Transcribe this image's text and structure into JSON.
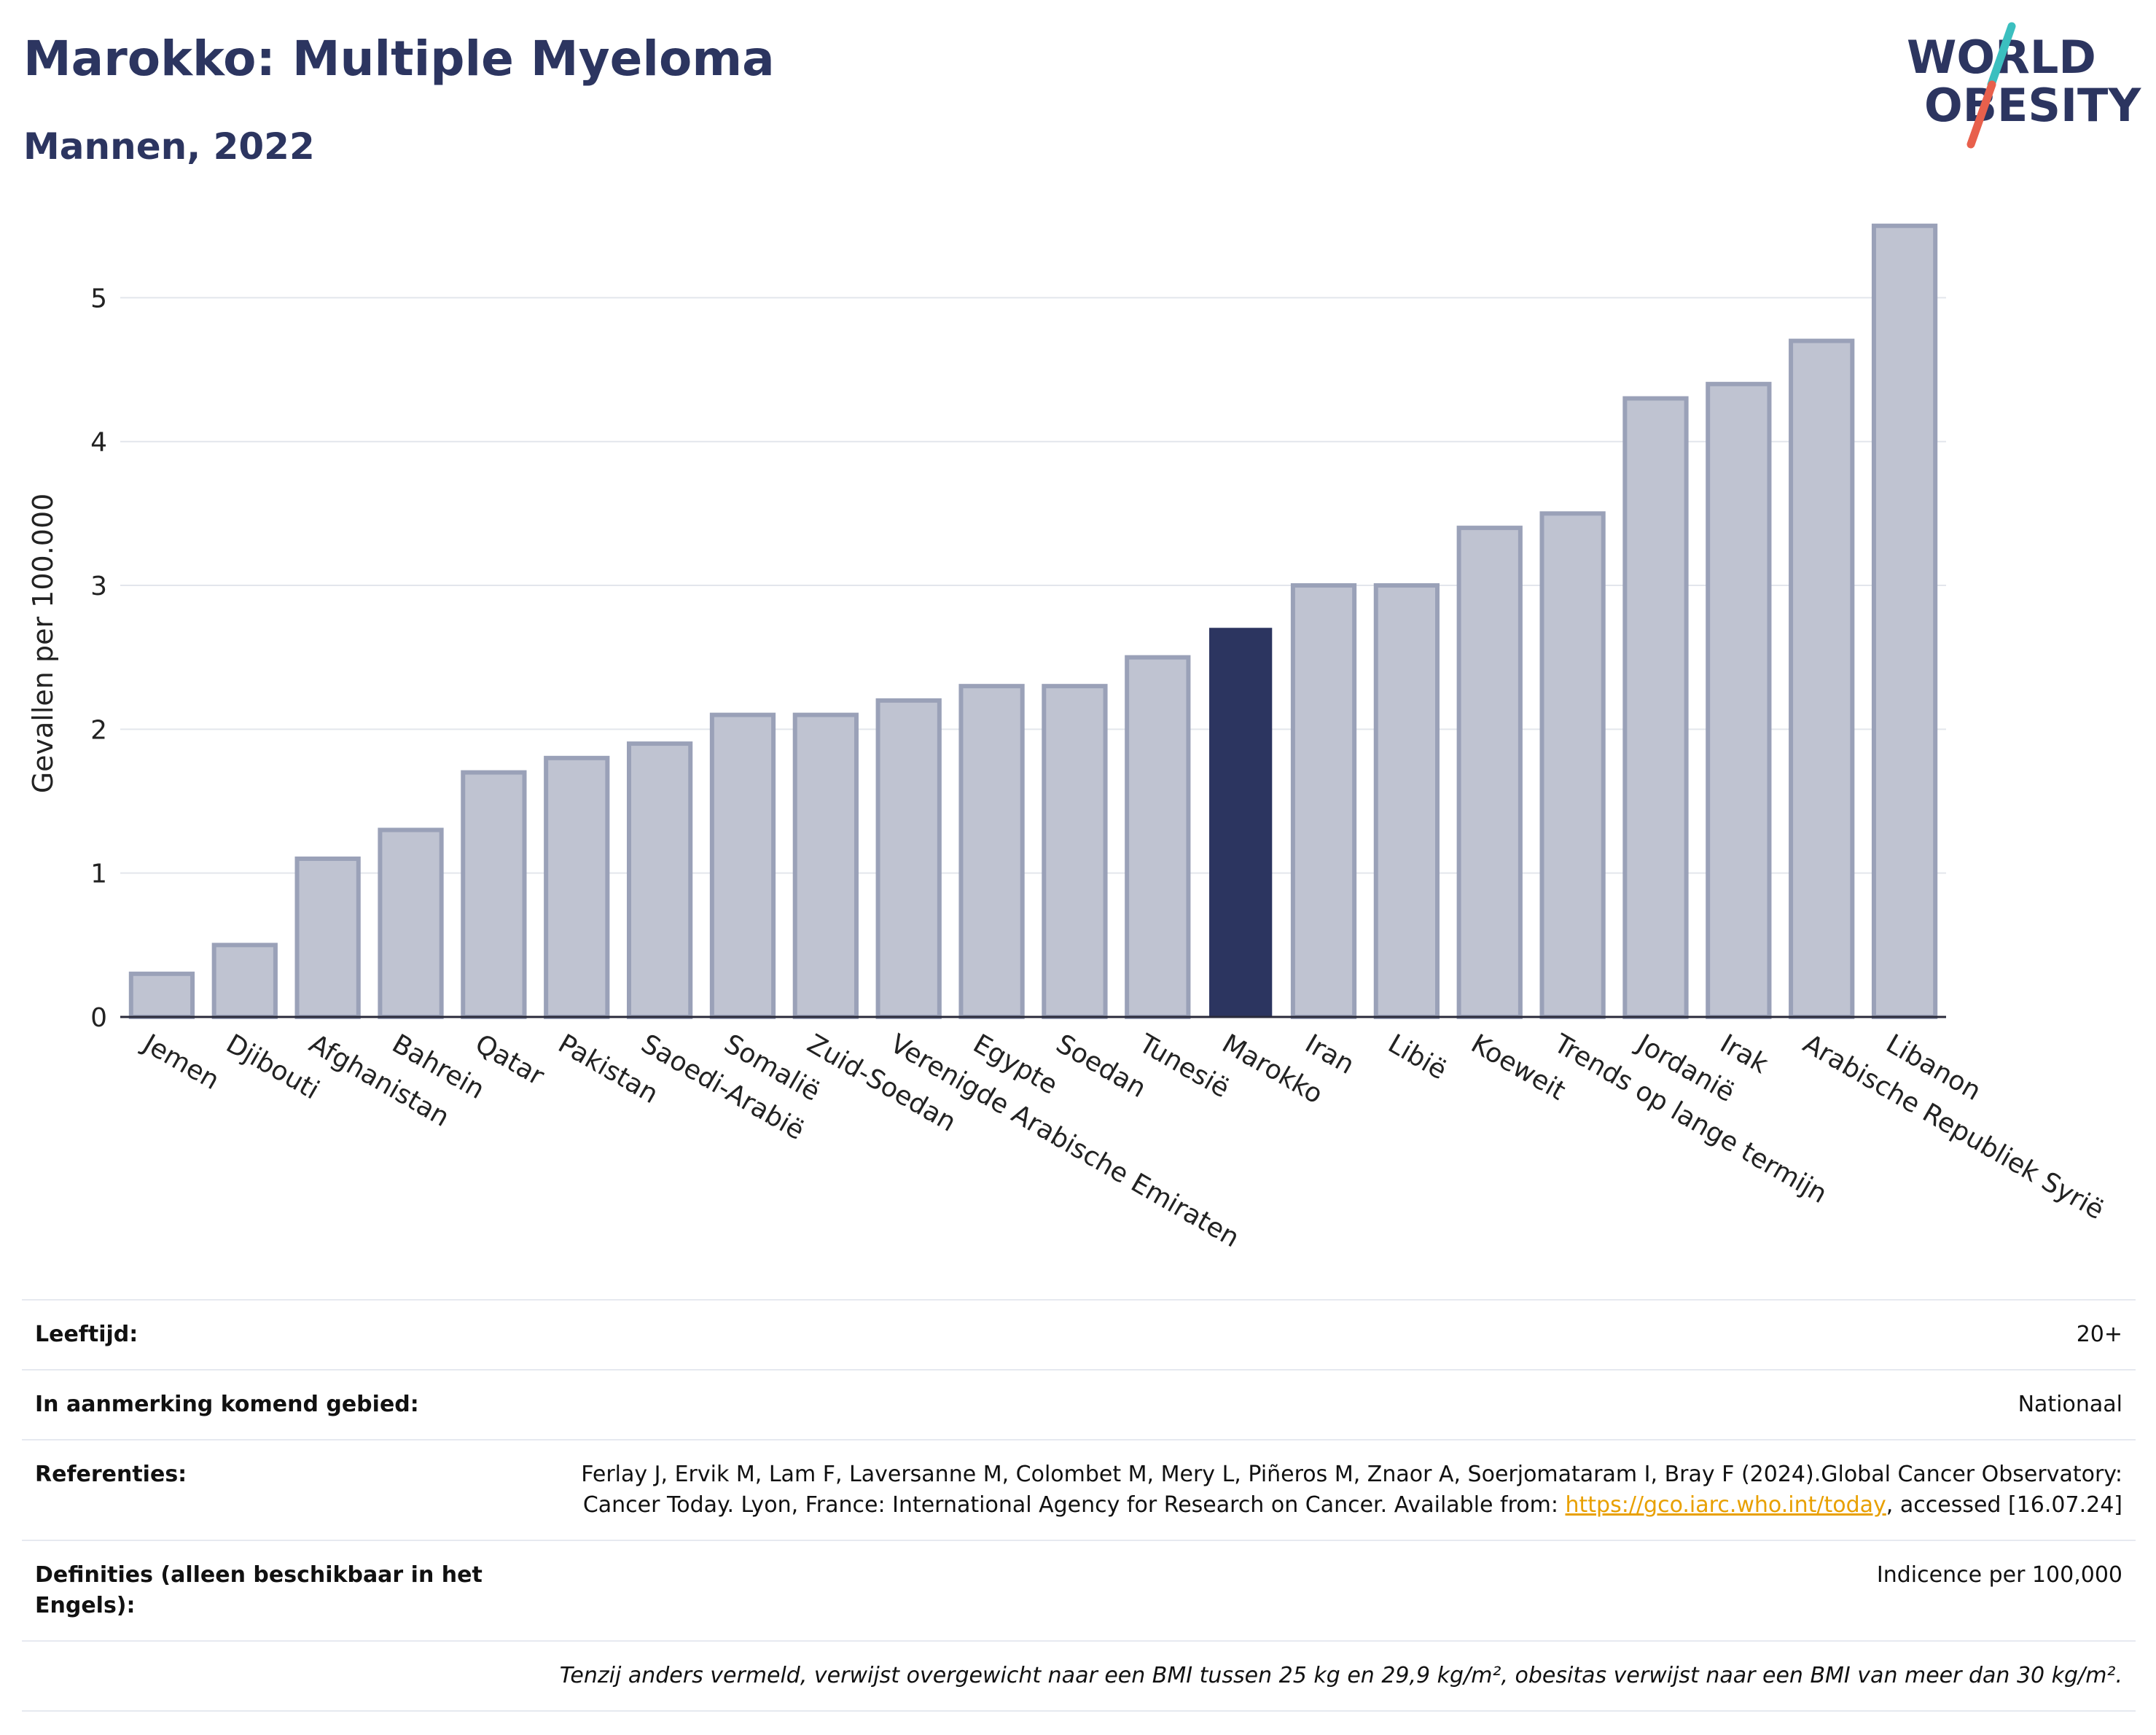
{
  "title": "Marokko: Multiple Myeloma",
  "subtitle": "Mannen, 2022",
  "logo": {
    "text": "WORLD OBESITY",
    "line1": "WORLD",
    "line2": "OBESITY",
    "colors": [
      "#2c3560",
      "#3bbfbf",
      "#e8604c"
    ]
  },
  "colors": {
    "highlight": "#2c3560",
    "bar": "#bfc3d1",
    "bar_border": "#9aa1b8",
    "grid": "#e3e6ec"
  },
  "chart_data": {
    "type": "bar",
    "ylabel": "Gevallen per 100.000",
    "ylim": [
      0,
      5.6
    ],
    "yticks": [
      0,
      1,
      2,
      3,
      4,
      5
    ],
    "highlight": "Marokko",
    "categories": [
      "Jemen",
      "Djibouti",
      "Afghanistan",
      "Bahrein",
      "Qatar",
      "Pakistan",
      "Saoedi-Arabië",
      "Somalië",
      "Zuid-Soedan",
      "Verenigde Arabische Emiraten",
      "Egypte",
      "Soedan",
      "Tunesië",
      "Marokko",
      "Iran",
      "Libië",
      "Koeweit",
      "Trends op lange termijn",
      "Jordanië",
      "Irak",
      "Arabische Republiek Syrië",
      "Libanon"
    ],
    "values": [
      0.3,
      0.5,
      1.1,
      1.3,
      1.7,
      1.8,
      1.9,
      2.1,
      2.1,
      2.2,
      2.3,
      2.3,
      2.5,
      2.7,
      3.0,
      3.0,
      3.4,
      3.5,
      4.3,
      4.4,
      4.7,
      5.5
    ],
    "grid": true
  },
  "info": {
    "age_label": "Leeftijd:",
    "age_value": "20+",
    "area_label": "In aanmerking komend gebied:",
    "area_value": "Nationaal",
    "ref_label": "Referenties:",
    "ref_text": "Ferlay J, Ervik M, Lam F, Laversanne M, Colombet M, Mery L, Piñeros M, Znaor A, Soerjomataram I, Bray F (2024).Global Cancer Observatory: Cancer Today. Lyon, France: International Agency for Research on Cancer. Available from: ",
    "ref_link": "https://gco.iarc.who.int/today",
    "ref_suffix": ", accessed [16.07.24]",
    "def_label": "Definities (alleen beschikbaar in het Engels):",
    "def_value": "Indicence per 100,000",
    "note": "Tenzij anders vermeld, verwijst overgewicht naar een BMI tussen 25 kg en 29,9 kg/m², obesitas verwijst naar een BMI van meer dan 30 kg/m²."
  }
}
